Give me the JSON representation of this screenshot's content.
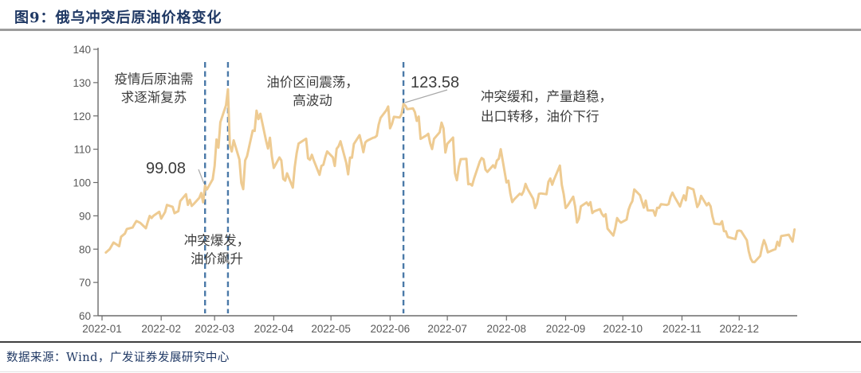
{
  "page": {
    "title": "图9：俄乌冲突后原油价格变化",
    "source": "数据来源：Wind，广发证券发展研究中心",
    "title_color": "#1f3864"
  },
  "chart_data": {
    "type": "line",
    "title": "俄乌冲突后原油价格变化",
    "xlabel": "",
    "ylabel": "",
    "ylim": [
      60,
      140
    ],
    "y_ticks": [
      140,
      130,
      120,
      110,
      100,
      90,
      80,
      70,
      60
    ],
    "x_tick_labels": [
      "2022-01",
      "2022-02",
      "2022-03",
      "2022-04",
      "2022-05",
      "2022-06",
      "2022-07",
      "2022-08",
      "2022-09",
      "2022-10",
      "2022-11",
      "2022-12"
    ],
    "grid": false,
    "legend": false,
    "line_color": "#eecb92",
    "event_line_color": "#4a79a8",
    "annotations": {
      "demand_recovery": "疫情后原油需\n求逐渐复苏",
      "range_volatility": "油价区间震荡，\n高波动",
      "conflict_outbreak": "冲突爆发，\n油价飙升",
      "conflict_easing": "冲突缓和，产量趋稳，\n出口转移，油价下行"
    },
    "events": [
      {
        "day": 55,
        "price_label": "99.08"
      },
      {
        "day": 67,
        "price_label": ""
      },
      {
        "day": 159,
        "price_label": "123.58"
      }
    ],
    "series": [
      {
        "name": "原油价格",
        "points": [
          [
            3,
            78.98
          ],
          [
            5,
            80.0
          ],
          [
            7,
            81.99
          ],
          [
            10,
            80.87
          ],
          [
            11,
            83.72
          ],
          [
            13,
            84.67
          ],
          [
            14,
            86.06
          ],
          [
            17,
            86.48
          ],
          [
            18,
            87.51
          ],
          [
            19,
            88.44
          ],
          [
            21,
            87.89
          ],
          [
            24,
            86.27
          ],
          [
            25,
            88.2
          ],
          [
            26,
            89.96
          ],
          [
            27,
            89.34
          ],
          [
            28,
            90.03
          ],
          [
            31,
            91.21
          ],
          [
            32,
            89.16
          ],
          [
            34,
            91.11
          ],
          [
            35,
            93.27
          ],
          [
            38,
            92.69
          ],
          [
            39,
            90.78
          ],
          [
            41,
            91.41
          ],
          [
            42,
            94.44
          ],
          [
            45,
            96.48
          ],
          [
            46,
            93.28
          ],
          [
            47,
            94.81
          ],
          [
            48,
            92.97
          ],
          [
            49,
            93.54
          ],
          [
            52,
            95.39
          ],
          [
            53,
            96.84
          ],
          [
            54,
            94.05
          ],
          [
            55,
            99.08
          ],
          [
            56,
            97.93
          ],
          [
            59,
            100.99
          ],
          [
            60,
            104.97
          ],
          [
            61,
            112.93
          ],
          [
            62,
            110.46
          ],
          [
            63,
            118.11
          ],
          [
            66,
            123.21
          ],
          [
            67,
            127.98
          ],
          [
            68,
            111.14
          ],
          [
            69,
            109.33
          ],
          [
            70,
            112.67
          ],
          [
            73,
            106.9
          ],
          [
            74,
            99.91
          ],
          [
            75,
            98.02
          ],
          [
            76,
            106.64
          ],
          [
            77,
            107.93
          ],
          [
            80,
            115.62
          ],
          [
            81,
            115.48
          ],
          [
            82,
            121.6
          ],
          [
            83,
            119.03
          ],
          [
            84,
            120.65
          ],
          [
            87,
            112.48
          ],
          [
            88,
            110.23
          ],
          [
            89,
            113.45
          ],
          [
            90,
            107.91
          ],
          [
            91,
            104.39
          ],
          [
            94,
            107.53
          ],
          [
            95,
            106.64
          ],
          [
            96,
            101.07
          ],
          [
            97,
            100.58
          ],
          [
            98,
            102.78
          ],
          [
            101,
            98.48
          ],
          [
            102,
            104.64
          ],
          [
            103,
            108.78
          ],
          [
            104,
            111.7
          ],
          [
            108,
            113.16
          ],
          [
            109,
            107.25
          ],
          [
            110,
            106.8
          ],
          [
            111,
            108.33
          ],
          [
            112,
            106.65
          ],
          [
            115,
            102.32
          ],
          [
            116,
            104.99
          ],
          [
            117,
            105.32
          ],
          [
            118,
            107.59
          ],
          [
            119,
            109.34
          ],
          [
            122,
            107.58
          ],
          [
            123,
            104.97
          ],
          [
            124,
            110.14
          ],
          [
            125,
            110.9
          ],
          [
            126,
            112.39
          ],
          [
            129,
            105.94
          ],
          [
            130,
            102.46
          ],
          [
            131,
            107.51
          ],
          [
            132,
            107.45
          ],
          [
            133,
            111.55
          ],
          [
            136,
            114.24
          ],
          [
            137,
            111.93
          ],
          [
            138,
            109.11
          ],
          [
            139,
            112.04
          ],
          [
            140,
            112.55
          ],
          [
            143,
            113.42
          ],
          [
            144,
            113.56
          ],
          [
            145,
            114.03
          ],
          [
            146,
            117.4
          ],
          [
            147,
            119.43
          ],
          [
            150,
            121.67
          ],
          [
            151,
            122.84
          ],
          [
            152,
            116.29
          ],
          [
            153,
            117.61
          ],
          [
            154,
            119.72
          ],
          [
            157,
            119.51
          ],
          [
            158,
            120.57
          ],
          [
            159,
            123.58
          ],
          [
            160,
            123.07
          ],
          [
            161,
            122.01
          ],
          [
            164,
            122.27
          ],
          [
            165,
            121.17
          ],
          [
            166,
            118.51
          ],
          [
            167,
            119.81
          ],
          [
            168,
            113.12
          ],
          [
            171,
            114.13
          ],
          [
            172,
            114.65
          ],
          [
            173,
            111.74
          ],
          [
            174,
            110.05
          ],
          [
            175,
            113.12
          ],
          [
            178,
            115.09
          ],
          [
            179,
            117.98
          ],
          [
            180,
            116.26
          ],
          [
            181,
            109.03
          ],
          [
            182,
            111.63
          ],
          [
            185,
            113.5
          ],
          [
            186,
            102.77
          ],
          [
            187,
            100.69
          ],
          [
            188,
            104.65
          ],
          [
            189,
            107.02
          ],
          [
            192,
            107.1
          ],
          [
            193,
            99.49
          ],
          [
            194,
            99.57
          ],
          [
            195,
            99.1
          ],
          [
            196,
            101.16
          ],
          [
            199,
            106.27
          ],
          [
            200,
            107.35
          ],
          [
            201,
            106.92
          ],
          [
            202,
            103.86
          ],
          [
            203,
            103.2
          ],
          [
            206,
            105.15
          ],
          [
            207,
            104.4
          ],
          [
            208,
            106.62
          ],
          [
            209,
            107.14
          ],
          [
            210,
            110.01
          ],
          [
            213,
            100.03
          ],
          [
            214,
            100.54
          ],
          [
            215,
            96.78
          ],
          [
            216,
            94.12
          ],
          [
            217,
            94.92
          ],
          [
            220,
            96.65
          ],
          [
            221,
            96.31
          ],
          [
            222,
            97.4
          ],
          [
            223,
            99.6
          ],
          [
            224,
            98.15
          ],
          [
            227,
            95.1
          ],
          [
            228,
            92.34
          ],
          [
            229,
            93.65
          ],
          [
            230,
            96.59
          ],
          [
            231,
            96.72
          ],
          [
            234,
            96.48
          ],
          [
            235,
            100.22
          ],
          [
            236,
            101.22
          ],
          [
            237,
            99.34
          ],
          [
            238,
            100.99
          ],
          [
            241,
            105.09
          ],
          [
            242,
            99.31
          ],
          [
            243,
            96.49
          ],
          [
            244,
            92.36
          ],
          [
            245,
            93.02
          ],
          [
            248,
            95.74
          ],
          [
            249,
            92.83
          ],
          [
            250,
            88.0
          ],
          [
            251,
            89.15
          ],
          [
            252,
            92.84
          ],
          [
            255,
            94.0
          ],
          [
            256,
            93.17
          ],
          [
            257,
            94.1
          ],
          [
            258,
            90.84
          ],
          [
            259,
            91.35
          ],
          [
            262,
            92.0
          ],
          [
            263,
            90.62
          ],
          [
            264,
            89.83
          ],
          [
            265,
            90.46
          ],
          [
            266,
            86.15
          ],
          [
            269,
            84.06
          ],
          [
            270,
            86.27
          ],
          [
            271,
            89.32
          ],
          [
            272,
            88.49
          ],
          [
            273,
            87.96
          ],
          [
            276,
            88.86
          ],
          [
            277,
            91.8
          ],
          [
            278,
            93.37
          ],
          [
            279,
            94.42
          ],
          [
            280,
            97.92
          ],
          [
            283,
            96.19
          ],
          [
            284,
            94.29
          ],
          [
            285,
            92.45
          ],
          [
            286,
            94.57
          ],
          [
            287,
            91.63
          ],
          [
            290,
            91.62
          ],
          [
            291,
            90.03
          ],
          [
            292,
            92.41
          ],
          [
            293,
            92.38
          ],
          [
            294,
            93.5
          ],
          [
            297,
            93.26
          ],
          [
            298,
            93.52
          ],
          [
            299,
            95.69
          ],
          [
            300,
            96.96
          ],
          [
            301,
            95.77
          ],
          [
            304,
            92.81
          ],
          [
            305,
            94.65
          ],
          [
            306,
            96.16
          ],
          [
            307,
            94.67
          ],
          [
            308,
            98.57
          ],
          [
            311,
            97.92
          ],
          [
            312,
            95.36
          ],
          [
            313,
            92.65
          ],
          [
            314,
            93.67
          ],
          [
            315,
            95.99
          ],
          [
            318,
            93.14
          ],
          [
            319,
            93.86
          ],
          [
            320,
            92.86
          ],
          [
            321,
            89.78
          ],
          [
            322,
            87.62
          ],
          [
            325,
            87.45
          ],
          [
            326,
            88.36
          ],
          [
            327,
            85.41
          ],
          [
            328,
            85.34
          ],
          [
            329,
            83.63
          ],
          [
            332,
            83.19
          ],
          [
            333,
            83.03
          ],
          [
            334,
            85.43
          ],
          [
            335,
            85.57
          ],
          [
            336,
            85.42
          ],
          [
            339,
            82.68
          ],
          [
            340,
            79.35
          ],
          [
            341,
            77.17
          ],
          [
            342,
            76.15
          ],
          [
            343,
            76.1
          ],
          [
            346,
            77.99
          ],
          [
            347,
            80.68
          ],
          [
            348,
            82.7
          ],
          [
            349,
            81.21
          ],
          [
            350,
            79.04
          ],
          [
            353,
            79.8
          ],
          [
            354,
            79.99
          ],
          [
            355,
            82.2
          ],
          [
            356,
            80.98
          ],
          [
            357,
            83.92
          ],
          [
            361,
            84.33
          ],
          [
            362,
            83.26
          ],
          [
            363,
            82.26
          ],
          [
            364,
            85.91
          ]
        ]
      }
    ]
  }
}
